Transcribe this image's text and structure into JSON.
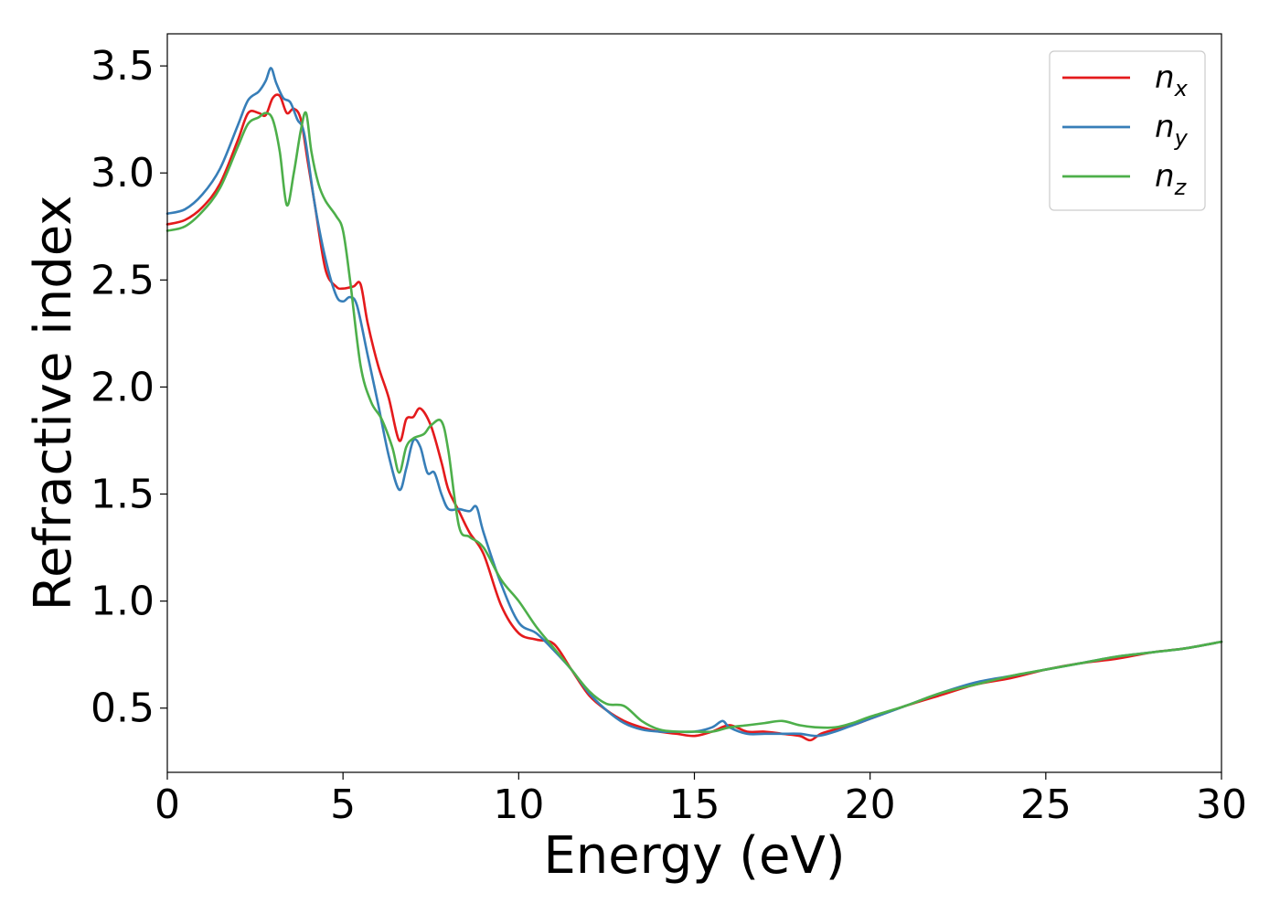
{
  "chart_data": {
    "type": "line",
    "xlabel": "Energy (eV)",
    "ylabel": "Refractive index",
    "xlim": [
      0,
      30
    ],
    "ylim": [
      0.2,
      3.65
    ],
    "x_ticks": [
      {
        "value": 0,
        "label": "0"
      },
      {
        "value": 5,
        "label": "5"
      },
      {
        "value": 10,
        "label": "10"
      },
      {
        "value": 15,
        "label": "15"
      },
      {
        "value": 20,
        "label": "20"
      },
      {
        "value": 25,
        "label": "25"
      },
      {
        "value": 30,
        "label": "30"
      }
    ],
    "y_ticks": [
      {
        "value": 0.5,
        "label": "0.5"
      },
      {
        "value": 1.0,
        "label": "1.0"
      },
      {
        "value": 1.5,
        "label": "1.5"
      },
      {
        "value": 2.0,
        "label": "2.0"
      },
      {
        "value": 2.5,
        "label": "2.5"
      },
      {
        "value": 3.0,
        "label": "3.0"
      },
      {
        "value": 3.5,
        "label": "3.5"
      }
    ],
    "grid": false,
    "legend_position": "top-right",
    "series": [
      {
        "name": "n",
        "subscript": "x",
        "color": "#e41a1c",
        "x": [
          0,
          0.5,
          1.0,
          1.5,
          2.0,
          2.3,
          2.6,
          2.8,
          3.0,
          3.2,
          3.4,
          3.6,
          3.8,
          4.0,
          4.2,
          4.5,
          4.8,
          5.0,
          5.3,
          5.5,
          5.7,
          6.0,
          6.3,
          6.6,
          6.8,
          7.0,
          7.2,
          7.5,
          7.8,
          8.0,
          8.3,
          8.6,
          9.0,
          9.5,
          10.0,
          10.5,
          11.0,
          11.5,
          12.0,
          12.5,
          13.0,
          13.5,
          14.0,
          14.5,
          15.0,
          15.5,
          16.0,
          16.5,
          17.0,
          17.5,
          18.0,
          18.3,
          18.6,
          19.0,
          19.5,
          20.0,
          21.0,
          22.0,
          23.0,
          24.0,
          25.0,
          26.0,
          27.0,
          28.0,
          29.0,
          30.0
        ],
        "y": [
          2.76,
          2.78,
          2.84,
          2.95,
          3.15,
          3.28,
          3.28,
          3.27,
          3.35,
          3.36,
          3.28,
          3.3,
          3.25,
          3.05,
          2.85,
          2.55,
          2.47,
          2.46,
          2.47,
          2.48,
          2.3,
          2.1,
          1.95,
          1.75,
          1.85,
          1.86,
          1.9,
          1.82,
          1.65,
          1.52,
          1.42,
          1.32,
          1.22,
          0.98,
          0.85,
          0.82,
          0.8,
          0.68,
          0.56,
          0.49,
          0.44,
          0.41,
          0.39,
          0.38,
          0.37,
          0.39,
          0.42,
          0.39,
          0.39,
          0.38,
          0.37,
          0.35,
          0.38,
          0.4,
          0.42,
          0.45,
          0.51,
          0.56,
          0.61,
          0.64,
          0.68,
          0.71,
          0.73,
          0.76,
          0.78,
          0.81
        ]
      },
      {
        "name": "n",
        "subscript": "y",
        "color": "#377eb8",
        "x": [
          0,
          0.5,
          1.0,
          1.5,
          2.0,
          2.3,
          2.6,
          2.8,
          2.95,
          3.1,
          3.3,
          3.5,
          3.7,
          3.9,
          4.2,
          4.5,
          4.8,
          5.0,
          5.2,
          5.4,
          5.7,
          6.0,
          6.3,
          6.6,
          6.8,
          7.0,
          7.2,
          7.4,
          7.6,
          7.8,
          8.0,
          8.3,
          8.6,
          8.8,
          9.0,
          9.5,
          10.0,
          10.5,
          11.0,
          11.5,
          12.0,
          12.5,
          13.0,
          13.5,
          14.0,
          14.5,
          15.0,
          15.5,
          15.8,
          16.0,
          16.5,
          17.0,
          17.5,
          18.0,
          18.5,
          19.0,
          19.5,
          20.0,
          21.0,
          22.0,
          23.0,
          24.0,
          25.0,
          26.0,
          27.0,
          28.0,
          29.0,
          30.0
        ],
        "y": [
          2.81,
          2.83,
          2.9,
          3.02,
          3.22,
          3.34,
          3.38,
          3.43,
          3.49,
          3.42,
          3.35,
          3.33,
          3.25,
          3.18,
          2.85,
          2.6,
          2.43,
          2.4,
          2.42,
          2.38,
          2.15,
          1.92,
          1.68,
          1.52,
          1.62,
          1.75,
          1.72,
          1.6,
          1.6,
          1.5,
          1.43,
          1.43,
          1.42,
          1.44,
          1.32,
          1.08,
          0.9,
          0.85,
          0.77,
          0.68,
          0.57,
          0.49,
          0.43,
          0.4,
          0.39,
          0.39,
          0.39,
          0.41,
          0.44,
          0.41,
          0.38,
          0.38,
          0.38,
          0.38,
          0.37,
          0.39,
          0.42,
          0.45,
          0.51,
          0.57,
          0.62,
          0.65,
          0.68,
          0.71,
          0.74,
          0.76,
          0.78,
          0.81
        ]
      },
      {
        "name": "n",
        "subscript": "z",
        "color": "#4daf4a",
        "x": [
          0,
          0.5,
          1.0,
          1.5,
          2.0,
          2.3,
          2.6,
          2.8,
          3.0,
          3.2,
          3.4,
          3.6,
          3.8,
          3.95,
          4.1,
          4.3,
          4.5,
          4.8,
          5.0,
          5.2,
          5.5,
          5.8,
          6.1,
          6.4,
          6.6,
          6.8,
          7.0,
          7.3,
          7.5,
          7.8,
          8.0,
          8.3,
          8.6,
          9.0,
          9.5,
          10.0,
          10.5,
          11.0,
          11.5,
          12.0,
          12.5,
          13.0,
          13.5,
          14.0,
          14.5,
          15.0,
          15.5,
          16.0,
          16.5,
          17.0,
          17.5,
          18.0,
          18.5,
          19.0,
          19.5,
          20.0,
          21.0,
          22.0,
          23.0,
          24.0,
          25.0,
          26.0,
          27.0,
          28.0,
          29.0,
          30.0
        ],
        "y": [
          2.73,
          2.75,
          2.82,
          2.93,
          3.12,
          3.23,
          3.26,
          3.28,
          3.25,
          3.1,
          2.85,
          3.0,
          3.2,
          3.28,
          3.1,
          2.95,
          2.87,
          2.8,
          2.73,
          2.5,
          2.1,
          1.93,
          1.85,
          1.72,
          1.6,
          1.72,
          1.76,
          1.78,
          1.82,
          1.84,
          1.7,
          1.35,
          1.3,
          1.25,
          1.1,
          1.0,
          0.88,
          0.78,
          0.68,
          0.58,
          0.52,
          0.51,
          0.44,
          0.4,
          0.39,
          0.39,
          0.39,
          0.41,
          0.42,
          0.43,
          0.44,
          0.42,
          0.41,
          0.41,
          0.43,
          0.46,
          0.51,
          0.57,
          0.61,
          0.65,
          0.68,
          0.71,
          0.74,
          0.76,
          0.78,
          0.81
        ]
      }
    ]
  }
}
